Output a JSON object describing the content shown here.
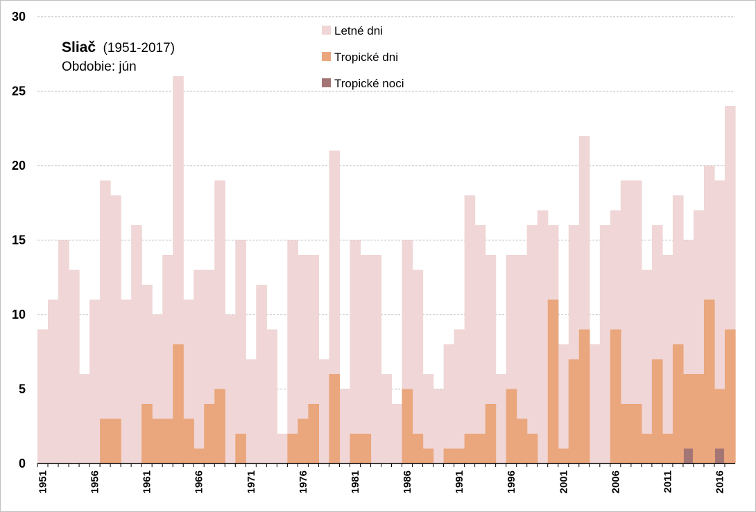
{
  "chart_data": {
    "type": "bar",
    "title": "Sliač",
    "title_suffix": "(1951-2017)",
    "subtitle": "Obdobie: jún",
    "xlabel": "",
    "ylabel": "",
    "ylim": [
      0,
      30
    ],
    "yticks": [
      "0",
      "5",
      "10",
      "15",
      "20",
      "25",
      "30"
    ],
    "grid": true,
    "legend_position": "top-center",
    "years": [
      1951,
      1952,
      1953,
      1954,
      1955,
      1956,
      1957,
      1958,
      1959,
      1960,
      1961,
      1962,
      1963,
      1964,
      1965,
      1966,
      1967,
      1968,
      1969,
      1970,
      1971,
      1972,
      1973,
      1974,
      1975,
      1976,
      1977,
      1978,
      1979,
      1980,
      1981,
      1982,
      1983,
      1984,
      1985,
      1986,
      1987,
      1988,
      1989,
      1990,
      1991,
      1992,
      1993,
      1994,
      1995,
      1996,
      1997,
      1998,
      1999,
      2000,
      2001,
      2002,
      2003,
      2004,
      2005,
      2006,
      2007,
      2008,
      2009,
      2010,
      2011,
      2012,
      2013,
      2014,
      2015,
      2016,
      2017
    ],
    "xtick_labels": [
      "1951",
      "1956",
      "1961",
      "1966",
      "1971",
      "1976",
      "1981",
      "1986",
      "1991",
      "1996",
      "2001",
      "2006",
      "2011",
      "2016"
    ],
    "series": [
      {
        "name": "Letné dni",
        "color": "#f0d6d6",
        "values": [
          9,
          11,
          15,
          13,
          6,
          11,
          19,
          18,
          11,
          16,
          12,
          10,
          14,
          26,
          11,
          13,
          13,
          19,
          10,
          15,
          7,
          12,
          9,
          2,
          15,
          14,
          14,
          7,
          21,
          5,
          15,
          14,
          14,
          6,
          4,
          15,
          13,
          6,
          5,
          8,
          9,
          18,
          16,
          14,
          6,
          14,
          14,
          16,
          17,
          16,
          8,
          16,
          22,
          8,
          16,
          17,
          19,
          19,
          13,
          16,
          14,
          18,
          15,
          17,
          20,
          19,
          24
        ]
      },
      {
        "name": "Tropické dni",
        "color": "#eaa67c",
        "values": [
          0,
          0,
          0,
          0,
          0,
          0,
          3,
          3,
          0,
          0,
          4,
          3,
          3,
          8,
          3,
          1,
          4,
          5,
          0,
          2,
          0,
          0,
          0,
          0,
          2,
          3,
          4,
          0,
          6,
          0,
          2,
          2,
          0,
          0,
          0,
          5,
          2,
          1,
          0,
          1,
          1,
          2,
          2,
          4,
          0,
          5,
          3,
          2,
          0,
          11,
          1,
          7,
          9,
          0,
          0,
          9,
          4,
          4,
          2,
          7,
          2,
          8,
          6,
          6,
          11,
          5,
          9
        ]
      },
      {
        "name": "Tropické noci",
        "color": "#a47575",
        "values": [
          0,
          0,
          0,
          0,
          0,
          0,
          0,
          0,
          0,
          0,
          0,
          0,
          0,
          0,
          0,
          0,
          0,
          0,
          0,
          0,
          0,
          0,
          0,
          0,
          0,
          0,
          0,
          0,
          0,
          0,
          0,
          0,
          0,
          0,
          0,
          0,
          0,
          0,
          0,
          0,
          0,
          0,
          0,
          0,
          0,
          0,
          0,
          0,
          0,
          0,
          0,
          0,
          0,
          0,
          0,
          0,
          0,
          0,
          0,
          0,
          0,
          0,
          1,
          0,
          0,
          1,
          0
        ]
      }
    ]
  }
}
